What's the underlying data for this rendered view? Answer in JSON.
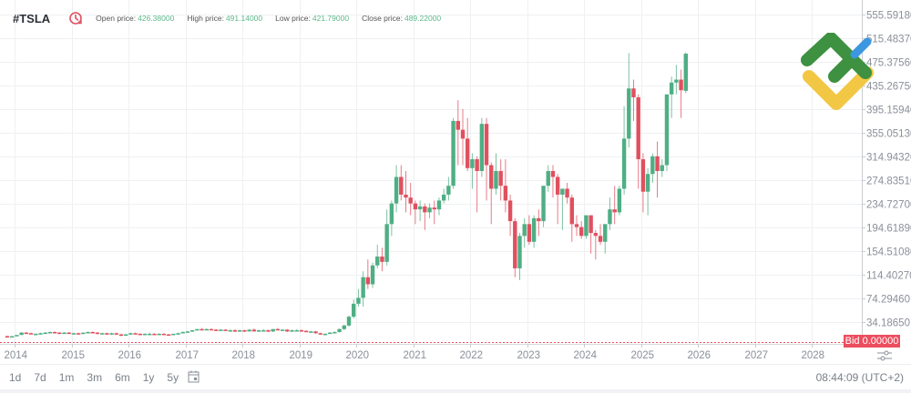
{
  "header": {
    "symbol": "#TSLA",
    "icon": "clock-history-icon",
    "open_label": "Open price:",
    "open_value": "426.38000",
    "high_label": "High price:",
    "high_value": "491.14000",
    "low_label": "Low price:",
    "low_value": "421.79000",
    "close_label": "Close price:",
    "close_value": "489.22000"
  },
  "colors": {
    "up": "#4fae84",
    "down": "#e0505f",
    "grid": "#eef0f2",
    "axis_text": "#8a8f98",
    "bid": "#ec4e5f",
    "value_text": "#5cb88a"
  },
  "bid_tag": {
    "label": "Bid 0.00000"
  },
  "footer": {
    "timeframes": [
      "1d",
      "7d",
      "1m",
      "3m",
      "6m",
      "1y",
      "5y"
    ],
    "calendar_icon": "calendar-icon",
    "clock": "08:44:09 (UTC+2)"
  },
  "chart_data": {
    "type": "candlestick",
    "title": "#TSLA",
    "interval": "monthly",
    "xlabel": "",
    "ylabel": "",
    "y_ticks": [
      "555.59180",
      "515.48370",
      "475.37560",
      "435.26750",
      "395.15940",
      "355.05130",
      "314.94320",
      "274.83510",
      "234.72700",
      "194.61890",
      "154.51080",
      "114.40270",
      "74.29460",
      "34.18650"
    ],
    "x_ticks": [
      "2014",
      "2015",
      "2016",
      "2017",
      "2018",
      "2019",
      "2020",
      "2021",
      "2022",
      "2023",
      "2024",
      "2025",
      "2026",
      "2027",
      "2028"
    ],
    "ylim": [
      0,
      570
    ],
    "grid": true,
    "last_candle": {
      "open": 426.38,
      "high": 491.14,
      "low": 421.79,
      "close": 489.22
    },
    "bid": 0.0,
    "candles_ohlc": [
      [
        10,
        11,
        9,
        9
      ],
      [
        9,
        10,
        8,
        10
      ],
      [
        10,
        12,
        10,
        12
      ],
      [
        12,
        17,
        12,
        16
      ],
      [
        16,
        17,
        14,
        15
      ],
      [
        15,
        16,
        13,
        14
      ],
      [
        14,
        15,
        13,
        14
      ],
      [
        14,
        16,
        13,
        15
      ],
      [
        15,
        17,
        14,
        16
      ],
      [
        16,
        18,
        15,
        17
      ],
      [
        17,
        18,
        15,
        16
      ],
      [
        16,
        17,
        14,
        15
      ],
      [
        15,
        17,
        14,
        16
      ],
      [
        16,
        17,
        14,
        14
      ],
      [
        14,
        16,
        13,
        15
      ],
      [
        15,
        16,
        13,
        14
      ],
      [
        14,
        16,
        13,
        16
      ],
      [
        16,
        18,
        15,
        17
      ],
      [
        17,
        18,
        15,
        16
      ],
      [
        16,
        17,
        13,
        14
      ],
      [
        14,
        16,
        13,
        15
      ],
      [
        15,
        16,
        12,
        13
      ],
      [
        13,
        16,
        12,
        15
      ],
      [
        15,
        16,
        12,
        13
      ],
      [
        13,
        14,
        10,
        11
      ],
      [
        11,
        14,
        11,
        13
      ],
      [
        13,
        16,
        12,
        15
      ],
      [
        15,
        16,
        13,
        14
      ],
      [
        14,
        15,
        12,
        13
      ],
      [
        13,
        15,
        12,
        14
      ],
      [
        14,
        16,
        13,
        14
      ],
      [
        14,
        15,
        12,
        13
      ],
      [
        13,
        15,
        12,
        14
      ],
      [
        14,
        15,
        12,
        13
      ],
      [
        13,
        14,
        11,
        12
      ],
      [
        12,
        14,
        12,
        14
      ],
      [
        14,
        16,
        13,
        15
      ],
      [
        15,
        18,
        15,
        17
      ],
      [
        17,
        19,
        16,
        18
      ],
      [
        18,
        20,
        17,
        20
      ],
      [
        20,
        22,
        19,
        22
      ],
      [
        22,
        24,
        20,
        21
      ],
      [
        21,
        23,
        20,
        22
      ],
      [
        22,
        23,
        20,
        21
      ],
      [
        21,
        22,
        19,
        20
      ],
      [
        20,
        22,
        19,
        21
      ],
      [
        21,
        22,
        19,
        20
      ],
      [
        20,
        22,
        19,
        20
      ],
      [
        20,
        22,
        17,
        18
      ],
      [
        18,
        21,
        17,
        20
      ],
      [
        20,
        21,
        17,
        18
      ],
      [
        18,
        22,
        18,
        21
      ],
      [
        21,
        23,
        18,
        18
      ],
      [
        18,
        21,
        17,
        20
      ],
      [
        20,
        22,
        18,
        20
      ],
      [
        20,
        21,
        17,
        18
      ],
      [
        18,
        22,
        17,
        22
      ],
      [
        22,
        24,
        20,
        20
      ],
      [
        20,
        22,
        19,
        21
      ],
      [
        21,
        22,
        17,
        18
      ],
      [
        18,
        21,
        17,
        20
      ],
      [
        20,
        22,
        18,
        20
      ],
      [
        20,
        22,
        18,
        19
      ],
      [
        19,
        20,
        17,
        17
      ],
      [
        17,
        19,
        16,
        18
      ],
      [
        18,
        19,
        14,
        15
      ],
      [
        15,
        16,
        12,
        13
      ],
      [
        13,
        15,
        12,
        14
      ],
      [
        14,
        17,
        14,
        16
      ],
      [
        16,
        18,
        15,
        17
      ],
      [
        17,
        23,
        16,
        22
      ],
      [
        22,
        30,
        20,
        28
      ],
      [
        28,
        45,
        26,
        43
      ],
      [
        43,
        72,
        40,
        65
      ],
      [
        65,
        90,
        60,
        75
      ],
      [
        75,
        120,
        60,
        110
      ],
      [
        110,
        140,
        90,
        98
      ],
      [
        98,
        135,
        92,
        130
      ],
      [
        130,
        165,
        125,
        145
      ],
      [
        145,
        160,
        120,
        136
      ],
      [
        136,
        225,
        130,
        200
      ],
      [
        200,
        240,
        180,
        235
      ],
      [
        235,
        300,
        220,
        280
      ],
      [
        280,
        300,
        240,
        250
      ],
      [
        250,
        290,
        220,
        245
      ],
      [
        245,
        270,
        215,
        235
      ],
      [
        235,
        240,
        200,
        225
      ],
      [
        225,
        240,
        205,
        230
      ],
      [
        230,
        235,
        190,
        220
      ],
      [
        220,
        235,
        210,
        228
      ],
      [
        228,
        240,
        200,
        225
      ],
      [
        225,
        245,
        215,
        240
      ],
      [
        240,
        260,
        235,
        250
      ],
      [
        250,
        280,
        240,
        265
      ],
      [
        265,
        380,
        260,
        375
      ],
      [
        375,
        410,
        300,
        360
      ],
      [
        360,
        395,
        300,
        345
      ],
      [
        345,
        380,
        290,
        295
      ],
      [
        295,
        320,
        260,
        310
      ],
      [
        310,
        315,
        220,
        290
      ],
      [
        290,
        380,
        280,
        370
      ],
      [
        370,
        380,
        240,
        300
      ],
      [
        300,
        305,
        200,
        260
      ],
      [
        260,
        320,
        250,
        290
      ],
      [
        290,
        310,
        240,
        265
      ],
      [
        265,
        310,
        220,
        240
      ],
      [
        240,
        250,
        180,
        205
      ],
      [
        205,
        210,
        110,
        125
      ],
      [
        125,
        185,
        105,
        180
      ],
      [
        180,
        210,
        160,
        200
      ],
      [
        200,
        215,
        165,
        170
      ],
      [
        170,
        215,
        160,
        210
      ],
      [
        210,
        225,
        180,
        205
      ],
      [
        205,
        240,
        195,
        265
      ],
      [
        265,
        300,
        255,
        290
      ],
      [
        290,
        300,
        245,
        280
      ],
      [
        280,
        285,
        200,
        250
      ],
      [
        250,
        260,
        190,
        260
      ],
      [
        260,
        270,
        235,
        245
      ],
      [
        245,
        250,
        170,
        200
      ],
      [
        200,
        215,
        180,
        195
      ],
      [
        195,
        205,
        175,
        180
      ],
      [
        180,
        210,
        175,
        215
      ],
      [
        215,
        215,
        150,
        185
      ],
      [
        185,
        190,
        140,
        180
      ],
      [
        180,
        200,
        165,
        170
      ],
      [
        170,
        200,
        150,
        200
      ],
      [
        200,
        245,
        190,
        225
      ],
      [
        225,
        265,
        200,
        220
      ],
      [
        220,
        265,
        215,
        260
      ],
      [
        260,
        400,
        250,
        345
      ],
      [
        345,
        490,
        330,
        430
      ],
      [
        430,
        445,
        375,
        415
      ],
      [
        415,
        420,
        260,
        310
      ],
      [
        310,
        320,
        220,
        255
      ],
      [
        255,
        295,
        215,
        285
      ],
      [
        285,
        320,
        270,
        315
      ],
      [
        315,
        340,
        245,
        290
      ],
      [
        290,
        310,
        280,
        300
      ],
      [
        300,
        350,
        290,
        420
      ],
      [
        420,
        450,
        380,
        440
      ],
      [
        440,
        470,
        420,
        445
      ],
      [
        445,
        462,
        380,
        427
      ],
      [
        426,
        491,
        422,
        489
      ]
    ]
  }
}
